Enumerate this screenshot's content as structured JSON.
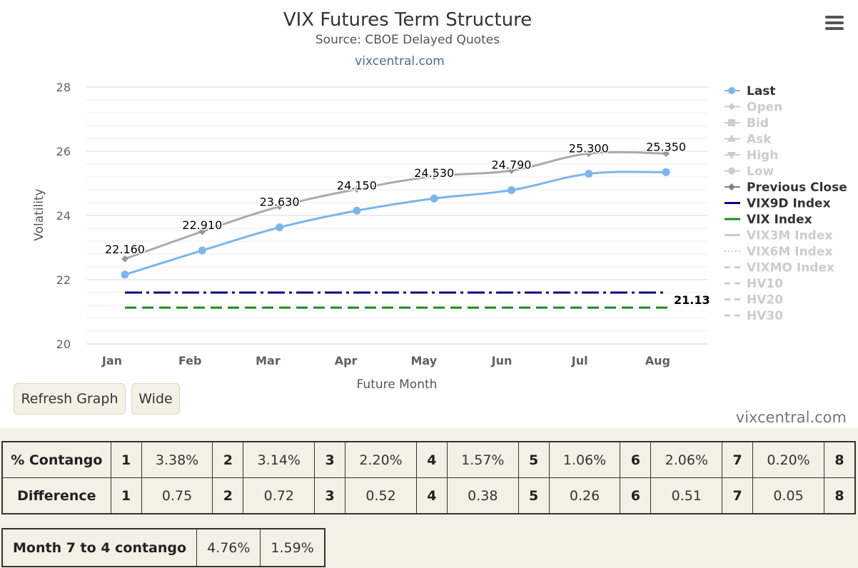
{
  "chart": {
    "title": "VIX Futures Term Structure",
    "subtitle": "Source: CBOE Delayed Quotes",
    "site_credit": "vixcentral.com",
    "watermark": "vixcentral.com",
    "menu_icon": "hamburger-menu-icon"
  },
  "chart_data": {
    "type": "line",
    "title": "VIX Futures Term Structure",
    "subtitle": "Source: CBOE Delayed Quotes",
    "xlabel": "Future Month",
    "ylabel": "Volatility",
    "categories": [
      "Jan",
      "Feb",
      "Mar",
      "Apr",
      "May",
      "Jun",
      "Jul",
      "Aug"
    ],
    "ylim": [
      20,
      28
    ],
    "yticks": [
      "20",
      "22",
      "24",
      "26",
      "28"
    ],
    "grid": true,
    "legend_position": "right",
    "series": [
      {
        "name": "Last",
        "color": "#7cb5ec",
        "values": [
          22.16,
          22.91,
          23.63,
          24.15,
          24.53,
          24.79,
          25.3,
          25.35
        ],
        "labels": [
          "22.160",
          "22.910",
          "23.630",
          "24.150",
          "24.530",
          "24.790",
          "25.300",
          "25.350"
        ]
      },
      {
        "name": "Previous Close",
        "color": "#aaaaaa",
        "values": [
          22.65,
          23.5,
          24.28,
          24.82,
          25.22,
          25.4,
          25.93,
          25.93
        ]
      },
      {
        "name": "VIX9D Index",
        "color": "#0a0a80",
        "value": 21.6
      },
      {
        "name": "VIX Index",
        "color": "#1e8a1e",
        "value": 21.13,
        "label": "21.13"
      }
    ],
    "legend": [
      {
        "name": "Last",
        "active": true,
        "symbol": "circle",
        "color": "#7cb5ec"
      },
      {
        "name": "Open",
        "active": false,
        "symbol": "diamond"
      },
      {
        "name": "Bid",
        "active": false,
        "symbol": "square"
      },
      {
        "name": "Ask",
        "active": false,
        "symbol": "triangle"
      },
      {
        "name": "High",
        "active": false,
        "symbol": "triangle-down"
      },
      {
        "name": "Low",
        "active": false,
        "symbol": "circle"
      },
      {
        "name": "Previous Close",
        "active": true,
        "symbol": "diamond",
        "color": "#808080"
      },
      {
        "name": "VIX9D Index",
        "active": true,
        "symbol": "line",
        "color": "#0a0a80"
      },
      {
        "name": "VIX Index",
        "active": true,
        "symbol": "line",
        "color": "#1e8a1e"
      },
      {
        "name": "VIX3M Index",
        "active": false,
        "symbol": "line"
      },
      {
        "name": "VIX6M Index",
        "active": false,
        "symbol": "dot"
      },
      {
        "name": "VIXMO Index",
        "active": false,
        "symbol": "dash"
      },
      {
        "name": "HV10",
        "active": false,
        "symbol": "dash"
      },
      {
        "name": "HV20",
        "active": false,
        "symbol": "dash"
      },
      {
        "name": "HV30",
        "active": false,
        "symbol": "dash"
      }
    ]
  },
  "buttons": {
    "refresh": "Refresh Graph",
    "wide": "Wide"
  },
  "contango_table": {
    "rows": [
      {
        "label": "% Contango",
        "cells": [
          "1",
          "3.38%",
          "2",
          "3.14%",
          "3",
          "2.20%",
          "4",
          "1.57%",
          "5",
          "1.06%",
          "6",
          "2.06%",
          "7",
          "0.20%",
          "8"
        ]
      },
      {
        "label": "Difference",
        "cells": [
          "1",
          "0.75",
          "2",
          "0.72",
          "3",
          "0.52",
          "4",
          "0.38",
          "5",
          "0.26",
          "6",
          "0.51",
          "7",
          "0.05",
          "8"
        ]
      }
    ]
  },
  "month_table": {
    "label": "Month 7 to 4 contango",
    "values": [
      "4.76%",
      "1.59%"
    ]
  }
}
